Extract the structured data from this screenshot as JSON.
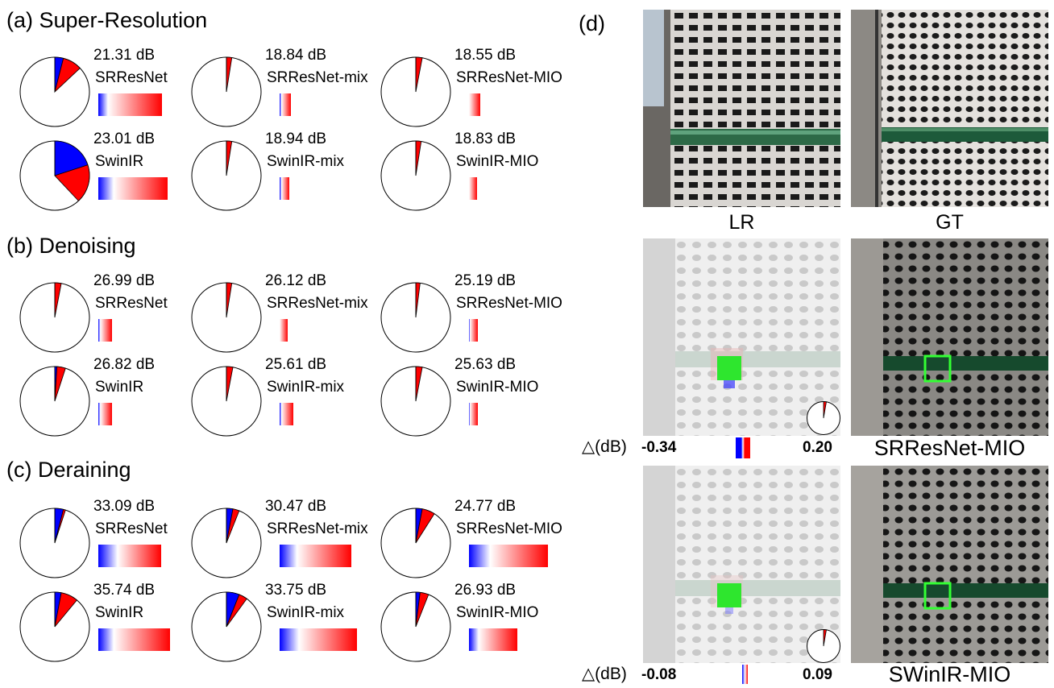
{
  "sections": [
    {
      "id": "sr",
      "title": "(a) Super-Resolution",
      "cells": [
        {
          "psnr": "21.31 dB",
          "name": "SRResNet",
          "neg": 0.04,
          "pos": 0.09,
          "neg_w": 0.1,
          "pos_w": 0.56
        },
        {
          "psnr": "18.84 dB",
          "name": "SRResNet-mix",
          "neg": 0.0,
          "pos": 0.025,
          "neg_w": 0.02,
          "pos_w": 0.1
        },
        {
          "psnr": "18.55 dB",
          "name": "SRResNet-MIO",
          "neg": 0.0,
          "pos": 0.03,
          "neg_w": 0.0,
          "pos_w": 0.12
        },
        {
          "psnr": "23.01 dB",
          "name": "SwinIR",
          "neg": 0.2,
          "pos": 0.18,
          "neg_w": 0.16,
          "pos_w": 0.56
        },
        {
          "psnr": "18.94 dB",
          "name": "SwinIR-mix",
          "neg": 0.0,
          "pos": 0.025,
          "neg_w": 0.02,
          "pos_w": 0.08
        },
        {
          "psnr": "18.83 dB",
          "name": "SwinIR-MIO",
          "neg": 0.0,
          "pos": 0.025,
          "neg_w": 0.0,
          "pos_w": 0.08
        }
      ]
    },
    {
      "id": "dn",
      "title": "(b) Denoising",
      "cells": [
        {
          "psnr": "26.99 dB",
          "name": "SRResNet",
          "neg": 0.0,
          "pos": 0.03,
          "neg_w": 0.02,
          "pos_w": 0.12
        },
        {
          "psnr": "26.12 dB",
          "name": "SRResNet-mix",
          "neg": 0.0,
          "pos": 0.025,
          "neg_w": 0.0,
          "pos_w": 0.08
        },
        {
          "psnr": "25.19 dB",
          "name": "SRResNet-MIO",
          "neg": 0.0,
          "pos": 0.02,
          "neg_w": 0.01,
          "pos_w": 0.08
        },
        {
          "psnr": "26.82 dB",
          "name": "SwinIR",
          "neg": 0.01,
          "pos": 0.04,
          "neg_w": 0.02,
          "pos_w": 0.12
        },
        {
          "psnr": "25.61 dB",
          "name": "SwinIR-mix",
          "neg": 0.0,
          "pos": 0.03,
          "neg_w": 0.02,
          "pos_w": 0.12
        },
        {
          "psnr": "25.63 dB",
          "name": "SwinIR-MIO",
          "neg": 0.0,
          "pos": 0.03,
          "neg_w": 0.01,
          "pos_w": 0.08
        }
      ]
    },
    {
      "id": "dr",
      "title": "(c) Deraining",
      "cells": [
        {
          "psnr": "33.09 dB",
          "name": "SRResNet",
          "neg": 0.04,
          "pos": 0.01,
          "neg_w": 0.2,
          "pos_w": 0.45
        },
        {
          "psnr": "30.47 dB",
          "name": "SRResNet-mix",
          "neg": 0.03,
          "pos": 0.03,
          "neg_w": 0.18,
          "pos_w": 0.56
        },
        {
          "psnr": "24.77 dB",
          "name": "SRResNet-MIO",
          "neg": 0.03,
          "pos": 0.06,
          "neg_w": 0.22,
          "pos_w": 0.6
        },
        {
          "psnr": "35.74 dB",
          "name": "SwinIR",
          "neg": 0.03,
          "pos": 0.08,
          "neg_w": 0.16,
          "pos_w": 0.58
        },
        {
          "psnr": "33.75 dB",
          "name": "SwinIR-mix",
          "neg": 0.06,
          "pos": 0.04,
          "neg_w": 0.2,
          "pos_w": 0.6
        },
        {
          "psnr": "26.93 dB",
          "name": "SwinIR-MIO",
          "neg": 0.02,
          "pos": 0.04,
          "neg_w": 0.1,
          "pos_w": 0.4
        }
      ]
    }
  ],
  "panel_d": {
    "title": "(d)",
    "lr_label": "LR",
    "gt_label": "GT",
    "srresnet_label": "SRResNet-MIO",
    "swinir_label": "SWinIR-MIO",
    "delta_label": "△(dB)",
    "row1": {
      "min": "-0.34",
      "max": "0.20"
    },
    "row2": {
      "min": "-0.08",
      "max": "0.09"
    }
  },
  "colors": {
    "neg": "#0000ff",
    "pos": "#ff0000",
    "box": "#33ff33",
    "rail": "#1e6b3a"
  }
}
